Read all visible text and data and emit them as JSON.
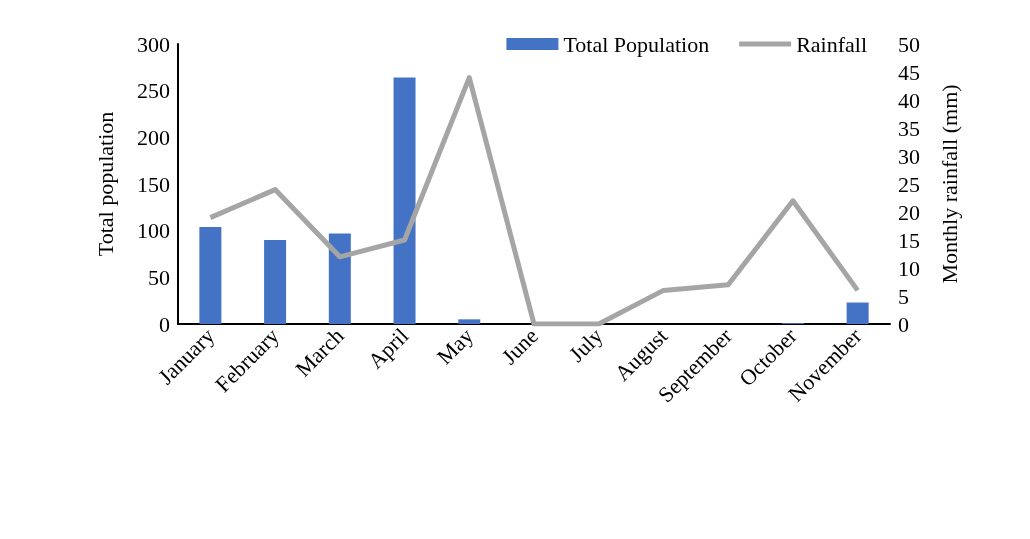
{
  "chart_data": {
    "type": "bar",
    "ylabel": "Total population",
    "y2label": "Monthly rainfall (mm)",
    "categories": [
      "January",
      "February",
      "March",
      "April",
      "May",
      "June",
      "July",
      "August",
      "September",
      "October",
      "November"
    ],
    "series": [
      {
        "name": "Total Population",
        "color": "#4472c4",
        "values": [
          104,
          90,
          97,
          264,
          5,
          0,
          0,
          0,
          0,
          1,
          23
        ]
      },
      {
        "name": "Rainfall",
        "type": "line",
        "axis": "y2",
        "color": "#a5a5a5",
        "values": [
          19,
          24,
          12,
          15,
          44,
          0,
          0,
          6,
          7,
          22,
          6
        ]
      }
    ],
    "ylim": [
      0,
      300
    ],
    "yticks": [
      0,
      50,
      100,
      150,
      200,
      250,
      300
    ],
    "y2lim": [
      0,
      50
    ],
    "y2ticks": [
      0,
      5,
      10,
      15,
      20,
      25,
      30,
      35,
      40,
      45,
      50
    ],
    "grid": false,
    "legend": "top right",
    "marker": "none",
    "line_style": "solid"
  }
}
